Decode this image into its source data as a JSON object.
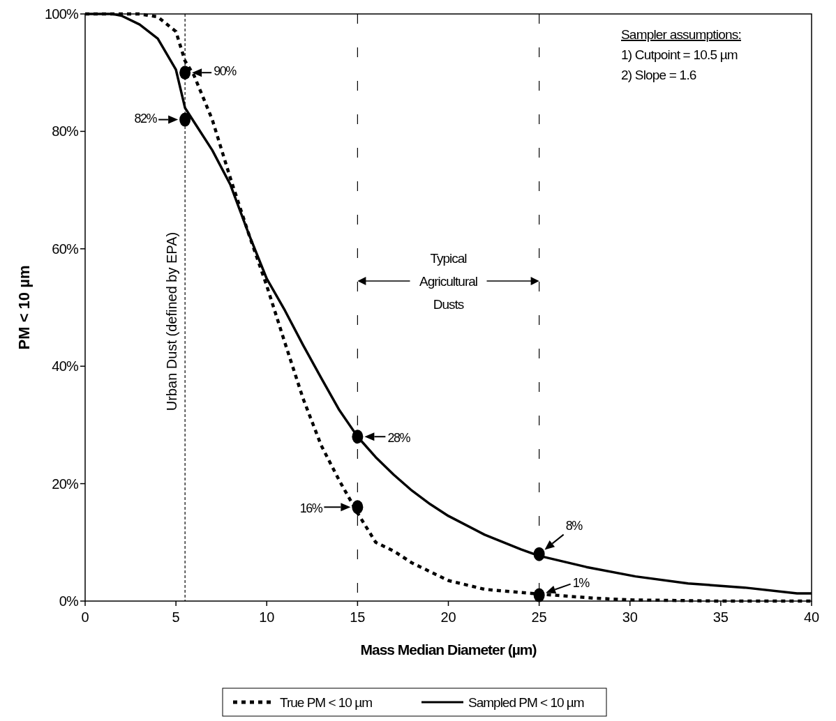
{
  "chart_data": {
    "type": "line",
    "xlabel": "Mass Median Diameter (µm)",
    "ylabel": "PM < 10 µm",
    "xlim": [
      0,
      40
    ],
    "xticks": [
      0,
      5,
      10,
      15,
      20,
      25,
      30,
      35,
      40
    ],
    "ylim": [
      0,
      100
    ],
    "yticks": [
      {
        "value": 0,
        "label": "0%"
      },
      {
        "value": 20,
        "label": "20%"
      },
      {
        "value": 40,
        "label": "40%"
      },
      {
        "value": 60,
        "label": "60%"
      },
      {
        "value": 80,
        "label": "80%"
      },
      {
        "value": 100,
        "label": "100%"
      }
    ],
    "grid": false,
    "legend": "bottom",
    "marker": "none",
    "series": [
      {
        "name": "True PM < 10 µm",
        "color": "#000000",
        "line_style": "dashed",
        "x": [
          0,
          1,
          2,
          3,
          4,
          5,
          5.5,
          6,
          7,
          8,
          9,
          10,
          11,
          12,
          13,
          14,
          15,
          16,
          17,
          18,
          20,
          22,
          25,
          28,
          30,
          35,
          40
        ],
        "values": [
          100,
          100,
          100,
          100,
          99.5,
          97,
          92,
          89.5,
          82,
          72,
          62.6,
          53.7,
          44,
          34.5,
          26.5,
          20.5,
          15,
          10,
          8.5,
          6.5,
          3.5,
          2,
          1.2,
          0.5,
          0.2,
          0,
          0
        ]
      },
      {
        "name": "Sampled PM < 10 µm",
        "color": "#000000",
        "line_style": "solid",
        "x": [
          0,
          1,
          1.5,
          2,
          3,
          4,
          5,
          5.5,
          6,
          7,
          8,
          9,
          10,
          11,
          12,
          13,
          14,
          15,
          16,
          17,
          18,
          19,
          20,
          22,
          24,
          25,
          27.6,
          30.3,
          33.2,
          36.3,
          39.2,
          40
        ],
        "values": [
          100,
          100,
          100,
          99.7,
          98.2,
          95.8,
          90.5,
          84,
          81.6,
          76.8,
          70.9,
          62.6,
          54.9,
          49.5,
          43.6,
          38,
          32.5,
          28,
          24.5,
          21.5,
          18.8,
          16.5,
          14.5,
          11.3,
          8.8,
          7.7,
          5.8,
          4.2,
          3,
          2.3,
          1.3,
          1.3
        ]
      },
      {
        "type": "scatter",
        "marker": "circle",
        "color": "#000000",
        "x": [
          5.5,
          5.5,
          15,
          15,
          25,
          25
        ],
        "values": [
          90,
          82,
          28,
          16,
          8,
          1
        ]
      }
    ],
    "ref_lines": [
      {
        "axis": "x",
        "value": 5.5,
        "label": "Urban Dust (defined by EPA)",
        "line_style": "dotted",
        "color": "#000000"
      },
      {
        "axis": "x",
        "value": 15,
        "line_style": "dashed",
        "color": "#000000"
      },
      {
        "axis": "x",
        "value": 25,
        "line_style": "dashed",
        "color": "#000000"
      }
    ],
    "annotations": [
      {
        "text": "90%",
        "x": 5.5,
        "y": 90
      },
      {
        "text": "82%",
        "x": 5.5,
        "y": 82
      },
      {
        "text": "28%",
        "x": 15,
        "y": 28
      },
      {
        "text": "16%",
        "x": 15,
        "y": 16
      },
      {
        "text": "8%",
        "x": 25,
        "y": 8
      },
      {
        "text": "1%",
        "x": 25,
        "y": 1
      },
      "Typical Agricultural Dusts",
      "Sampler assumptions:",
      "1) Cutpoint = 10.5 µm",
      "2) Slope = 1.6"
    ]
  }
}
